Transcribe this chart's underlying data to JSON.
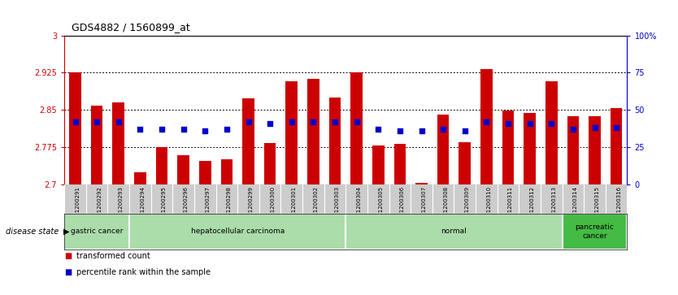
{
  "title": "GDS4882 / 1560899_at",
  "samples": [
    "GSM1200291",
    "GSM1200292",
    "GSM1200293",
    "GSM1200294",
    "GSM1200295",
    "GSM1200296",
    "GSM1200297",
    "GSM1200298",
    "GSM1200299",
    "GSM1200300",
    "GSM1200301",
    "GSM1200302",
    "GSM1200303",
    "GSM1200304",
    "GSM1200305",
    "GSM1200306",
    "GSM1200307",
    "GSM1200308",
    "GSM1200309",
    "GSM1200310",
    "GSM1200311",
    "GSM1200312",
    "GSM1200313",
    "GSM1200314",
    "GSM1200315",
    "GSM1200316"
  ],
  "transformed_count": [
    2.925,
    2.858,
    2.865,
    2.725,
    2.775,
    2.758,
    2.748,
    2.75,
    2.873,
    2.783,
    2.908,
    2.912,
    2.875,
    2.925,
    2.779,
    2.782,
    2.703,
    2.84,
    2.785,
    2.932,
    2.848,
    2.843,
    2.908,
    2.838,
    2.838,
    2.853
  ],
  "percentile_rank": [
    42,
    42,
    42,
    37,
    37,
    37,
    36,
    37,
    42,
    41,
    42,
    42,
    42,
    42,
    37,
    36,
    36,
    37,
    36,
    42,
    41,
    41,
    41,
    37,
    38,
    38
  ],
  "disease_groups": [
    {
      "label": "gastric cancer",
      "start": 0,
      "end": 3,
      "color": "#aaddaa"
    },
    {
      "label": "hepatocellular carcinoma",
      "start": 3,
      "end": 13,
      "color": "#aaddaa"
    },
    {
      "label": "normal",
      "start": 13,
      "end": 23,
      "color": "#aaddaa"
    },
    {
      "label": "pancreatic\ncancer",
      "start": 23,
      "end": 26,
      "color": "#44bb44"
    }
  ],
  "ylim": [
    2.7,
    3.0
  ],
  "yticks_left": [
    2.7,
    2.775,
    2.85,
    2.925,
    3.0
  ],
  "ytick_labels_left": [
    "2.7",
    "2.775",
    "2.85",
    "2.925",
    "3"
  ],
  "yticks_right": [
    0,
    25,
    50,
    75,
    100
  ],
  "ytick_labels_right": [
    "0",
    "25",
    "50",
    "75",
    "100%"
  ],
  "bar_color": "#cc0000",
  "dot_color": "#0000cc",
  "bar_width": 0.55,
  "bg_color": "#ffffff",
  "xtick_bg": "#cccccc",
  "disease_state_label": "disease state",
  "legend_bar_label": "transformed count",
  "legend_dot_label": "percentile rank within the sample",
  "gridline_y": [
    2.775,
    2.85,
    2.925
  ]
}
